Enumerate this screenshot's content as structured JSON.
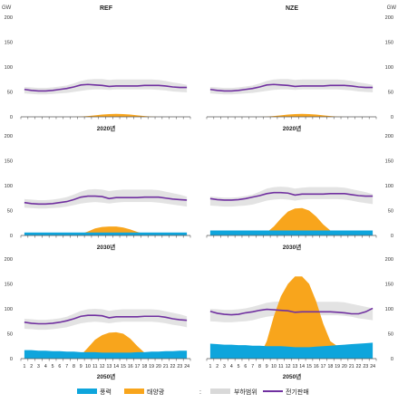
{
  "unit_left": "GW",
  "unit_right": "GW",
  "scenarios": [
    "REF",
    "NZE"
  ],
  "row_titles": [
    "2020년",
    "2030년",
    "2050년"
  ],
  "colors": {
    "wind": "#0ea5dc",
    "solar": "#f8a51c",
    "band": "#d9d9d9",
    "demand": "#7030a0",
    "axis": "#595959"
  },
  "legend": {
    "wind": "풍력",
    "solar": "태양광",
    "separator": ":",
    "band": "부하범위",
    "demand": "전기판매"
  },
  "chart_data": [
    {
      "type": "area",
      "scenario": "REF",
      "year_label": "",
      "x": [
        1,
        2,
        3,
        4,
        5,
        6,
        7,
        8,
        9,
        10,
        11,
        12,
        13,
        14,
        15,
        16,
        17,
        18,
        19,
        20,
        21,
        22,
        23,
        24
      ],
      "xlabel": "",
      "ylabel": "GW",
      "ylim": [
        0,
        200
      ],
      "yticks": [
        0,
        50,
        100,
        150,
        200
      ],
      "xticks_shown": false,
      "series": [
        {
          "name": "풍력",
          "values": [
            0,
            0,
            0,
            0,
            0,
            0,
            0,
            0,
            0,
            0,
            0,
            0,
            0,
            0,
            0,
            0,
            0,
            0,
            0,
            0,
            0,
            0,
            0,
            0
          ]
        },
        {
          "name": "태양광",
          "values": [
            0,
            0,
            0,
            0,
            0,
            0,
            0,
            0,
            0.5,
            1.5,
            3,
            4.5,
            5.5,
            6,
            5.5,
            4.5,
            3,
            1.5,
            0.5,
            0,
            0,
            0,
            0,
            0
          ]
        },
        {
          "name": "부하범위",
          "type": "band",
          "low": [
            47,
            46,
            45,
            45,
            46,
            47,
            48,
            50,
            52,
            54,
            55,
            55,
            54,
            55,
            55,
            55,
            55,
            55,
            55,
            54,
            53,
            51,
            50,
            49
          ],
          "high": [
            60,
            59,
            58,
            58,
            59,
            61,
            63,
            67,
            72,
            75,
            76,
            76,
            74,
            75,
            75,
            75,
            75,
            75,
            75,
            74,
            72,
            69,
            67,
            64
          ]
        },
        {
          "name": "전기판매",
          "type": "line",
          "values": [
            55,
            53,
            52,
            52,
            53,
            55,
            57,
            60,
            64,
            65,
            64,
            63,
            61,
            62,
            62,
            62,
            62,
            63,
            63,
            63,
            62,
            60,
            59,
            59
          ]
        }
      ]
    },
    {
      "type": "area",
      "scenario": "NZE",
      "year_label": "",
      "x": [
        1,
        2,
        3,
        4,
        5,
        6,
        7,
        8,
        9,
        10,
        11,
        12,
        13,
        14,
        15,
        16,
        17,
        18,
        19,
        20,
        21,
        22,
        23,
        24
      ],
      "xlabel": "",
      "ylabel": "GW",
      "ylim": [
        0,
        200
      ],
      "yticks": [
        0,
        50,
        100,
        150,
        200
      ],
      "xticks_shown": false,
      "series": [
        {
          "name": "풍력",
          "values": [
            0,
            0,
            0,
            0,
            0,
            0,
            0,
            0,
            0,
            0,
            0,
            0,
            0,
            0,
            0,
            0,
            0,
            0,
            0,
            0,
            0,
            0,
            0,
            0
          ]
        },
        {
          "name": "태양광",
          "values": [
            0,
            0,
            0,
            0,
            0,
            0,
            0,
            0,
            0.5,
            1.5,
            3,
            4.5,
            5.5,
            6,
            5.5,
            4.5,
            3,
            1.5,
            0.5,
            0,
            0,
            0,
            0,
            0
          ]
        },
        {
          "name": "부하범위",
          "type": "band",
          "low": [
            47,
            46,
            45,
            45,
            46,
            47,
            48,
            50,
            52,
            54,
            55,
            55,
            54,
            55,
            55,
            55,
            55,
            55,
            55,
            54,
            53,
            51,
            50,
            49
          ],
          "high": [
            60,
            59,
            58,
            58,
            59,
            61,
            63,
            67,
            72,
            75,
            76,
            76,
            74,
            75,
            75,
            75,
            75,
            75,
            75,
            74,
            72,
            69,
            67,
            64
          ]
        },
        {
          "name": "전기판매",
          "type": "line",
          "values": [
            55,
            53,
            52,
            52,
            53,
            55,
            57,
            60,
            64,
            65,
            64,
            63,
            61,
            62,
            62,
            62,
            62,
            63,
            63,
            63,
            62,
            60,
            59,
            59
          ]
        }
      ]
    },
    {
      "type": "area",
      "scenario": "REF",
      "year_label": "2020년",
      "x": [
        1,
        2,
        3,
        4,
        5,
        6,
        7,
        8,
        9,
        10,
        11,
        12,
        13,
        14,
        15,
        16,
        17,
        18,
        19,
        20,
        21,
        22,
        23,
        24
      ],
      "xlabel": "",
      "ylabel": "GW",
      "ylim": [
        0,
        200
      ],
      "yticks": [
        0,
        50,
        100,
        150,
        200
      ],
      "xticks_shown": false,
      "series": [
        {
          "name": "풍력",
          "values": [
            6,
            6,
            6,
            6,
            6,
            6,
            6,
            6,
            6,
            6,
            6,
            6,
            6,
            6,
            6,
            6,
            6,
            6,
            6,
            6,
            6,
            6,
            6,
            6
          ]
        },
        {
          "name": "태양광",
          "values": [
            0,
            0,
            0,
            0,
            0,
            0,
            0,
            0.5,
            3,
            8,
            14,
            17,
            18,
            18,
            16,
            12,
            7,
            3,
            1,
            0,
            0,
            0,
            0,
            0
          ]
        },
        {
          "name": "부하범위",
          "type": "band",
          "low": [
            56,
            55,
            54,
            54,
            55,
            56,
            58,
            61,
            64,
            66,
            67,
            66,
            64,
            66,
            67,
            67,
            67,
            67,
            67,
            66,
            64,
            62,
            60,
            58
          ],
          "high": [
            73,
            72,
            71,
            71,
            72,
            74,
            77,
            82,
            88,
            92,
            93,
            92,
            89,
            91,
            92,
            92,
            92,
            92,
            92,
            91,
            88,
            85,
            82,
            78
          ]
        },
        {
          "name": "전기판매",
          "type": "line",
          "values": [
            66,
            64,
            63,
            63,
            64,
            66,
            68,
            72,
            77,
            79,
            79,
            78,
            74,
            76,
            76,
            76,
            76,
            77,
            77,
            77,
            75,
            73,
            72,
            71
          ]
        }
      ]
    },
    {
      "type": "area",
      "scenario": "NZE",
      "year_label": "2020년",
      "x": [
        1,
        2,
        3,
        4,
        5,
        6,
        7,
        8,
        9,
        10,
        11,
        12,
        13,
        14,
        15,
        16,
        17,
        18,
        19,
        20,
        21,
        22,
        23,
        24
      ],
      "xlabel": "",
      "ylabel": "GW",
      "ylim": [
        0,
        200
      ],
      "yticks": [
        0,
        50,
        100,
        150,
        200
      ],
      "xticks_shown": false,
      "series": [
        {
          "name": "풍력",
          "values": [
            10,
            10,
            10,
            10,
            10,
            10,
            10,
            10,
            10,
            10,
            10,
            10,
            10,
            10,
            10,
            10,
            10,
            10,
            10,
            10,
            10,
            10,
            10,
            10
          ]
        },
        {
          "name": "태양광",
          "values": [
            0,
            0,
            0,
            0,
            0,
            0,
            0,
            0.5,
            6,
            18,
            34,
            48,
            54,
            55,
            50,
            38,
            22,
            10,
            3,
            0.5,
            0,
            0,
            0,
            0
          ]
        },
        {
          "name": "부하범위",
          "type": "band",
          "low": [
            60,
            59,
            58,
            58,
            59,
            60,
            62,
            66,
            70,
            72,
            73,
            72,
            70,
            72,
            73,
            73,
            73,
            73,
            73,
            72,
            70,
            67,
            65,
            63
          ],
          "high": [
            78,
            77,
            76,
            76,
            77,
            79,
            82,
            88,
            94,
            97,
            98,
            97,
            94,
            96,
            97,
            97,
            97,
            97,
            97,
            96,
            93,
            90,
            87,
            83
          ]
        },
        {
          "name": "전기판매",
          "type": "line",
          "values": [
            74,
            72,
            71,
            71,
            72,
            74,
            77,
            80,
            84,
            86,
            86,
            85,
            81,
            83,
            83,
            83,
            83,
            84,
            84,
            84,
            82,
            80,
            79,
            79
          ]
        }
      ]
    },
    {
      "type": "area",
      "scenario": "REF",
      "year_label": "2030년",
      "x": [
        1,
        2,
        3,
        4,
        5,
        6,
        7,
        8,
        9,
        10,
        11,
        12,
        13,
        14,
        15,
        16,
        17,
        18,
        19,
        20,
        21,
        22,
        23,
        24
      ],
      "xlabel": "2050년",
      "ylabel": "GW",
      "ylim": [
        0,
        200
      ],
      "yticks": [
        0,
        50,
        100,
        150,
        200
      ],
      "xticks_shown": true,
      "series": [
        {
          "name": "풍력",
          "values": [
            17,
            17,
            16,
            16,
            15,
            15,
            14,
            14,
            13,
            13,
            13,
            12,
            12,
            12,
            12,
            12,
            13,
            13,
            14,
            14,
            15,
            15,
            16,
            16
          ]
        },
        {
          "name": "태양광",
          "values": [
            0,
            0,
            0,
            0,
            0,
            0,
            0,
            1,
            7,
            22,
            38,
            47,
            52,
            53,
            50,
            40,
            25,
            12,
            8,
            6,
            3,
            1,
            0,
            0
          ]
        },
        {
          "name": "부하범위",
          "type": "band",
          "low": [
            60,
            59,
            58,
            58,
            59,
            61,
            63,
            67,
            71,
            73,
            74,
            73,
            71,
            73,
            74,
            74,
            74,
            74,
            74,
            73,
            71,
            68,
            66,
            63
          ],
          "high": [
            80,
            79,
            78,
            78,
            79,
            81,
            84,
            90,
            96,
            99,
            100,
            99,
            96,
            98,
            99,
            99,
            99,
            99,
            99,
            98,
            95,
            92,
            89,
            85
          ]
        },
        {
          "name": "전기판매",
          "type": "line",
          "values": [
            73,
            71,
            70,
            70,
            71,
            73,
            76,
            80,
            85,
            87,
            87,
            86,
            82,
            84,
            84,
            84,
            84,
            85,
            85,
            85,
            83,
            80,
            78,
            77
          ]
        }
      ]
    },
    {
      "type": "area",
      "scenario": "NZE",
      "year_label": "2030년",
      "x": [
        1,
        2,
        3,
        4,
        5,
        6,
        7,
        8,
        9,
        10,
        11,
        12,
        13,
        14,
        15,
        16,
        17,
        18,
        19,
        20,
        21,
        22,
        23,
        24
      ],
      "xlabel": "2050년",
      "ylabel": "GW",
      "ylim": [
        0,
        200
      ],
      "yticks": [
        0,
        50,
        100,
        150,
        200
      ],
      "xticks_shown": true,
      "series": [
        {
          "name": "풍력",
          "values": [
            30,
            29,
            28,
            28,
            27,
            27,
            26,
            26,
            25,
            25,
            25,
            24,
            23,
            23,
            23,
            24,
            25,
            26,
            27,
            28,
            29,
            30,
            31,
            32
          ]
        },
        {
          "name": "태양광",
          "values": [
            0,
            0,
            0,
            0,
            0,
            0,
            0,
            5,
            35,
            85,
            125,
            150,
            165,
            165,
            150,
            115,
            70,
            35,
            25,
            20,
            15,
            8,
            0,
            0
          ]
        },
        {
          "name": "부하범위",
          "type": "band",
          "low": [
            75,
            74,
            73,
            73,
            74,
            75,
            77,
            81,
            84,
            86,
            87,
            86,
            84,
            86,
            87,
            87,
            87,
            87,
            87,
            86,
            84,
            81,
            79,
            77
          ],
          "high": [
            100,
            99,
            98,
            98,
            99,
            101,
            104,
            108,
            112,
            114,
            115,
            114,
            111,
            113,
            114,
            114,
            114,
            114,
            114,
            113,
            110,
            107,
            104,
            101
          ]
        },
        {
          "name": "전기판매",
          "type": "line",
          "values": [
            95,
            91,
            89,
            88,
            89,
            92,
            94,
            97,
            99,
            98,
            97,
            96,
            93,
            94,
            94,
            94,
            94,
            94,
            93,
            92,
            90,
            90,
            94,
            101
          ]
        }
      ]
    }
  ]
}
